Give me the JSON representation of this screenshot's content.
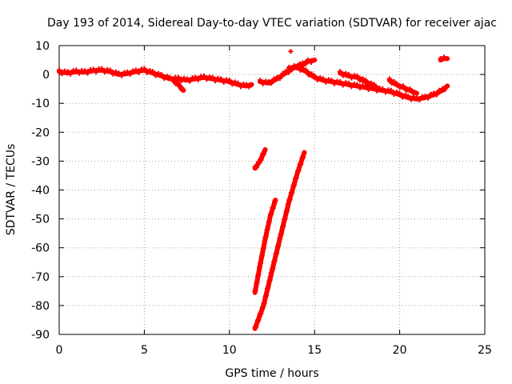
{
  "chart_data": {
    "type": "scatter",
    "title": "Day 193 of 2014, Sidereal Day-to-day VTEC variation (SDTVAR) for receiver ajac",
    "xlabel": "GPS time / hours",
    "ylabel": "SDTVAR / TECUs",
    "xlim": [
      0,
      25
    ],
    "ylim": [
      -90,
      10
    ],
    "xticks": [
      0,
      5,
      10,
      15,
      20,
      25
    ],
    "yticks": [
      10,
      0,
      -10,
      -20,
      -30,
      -40,
      -50,
      -60,
      -70,
      -80,
      -90
    ],
    "grid": true,
    "marker": "+",
    "color": "#ff0000",
    "series": [
      {
        "segments": [
          [
            [
              0.0,
              1.0
            ],
            [
              0.5,
              0.5
            ],
            [
              1.0,
              1.0
            ],
            [
              1.5,
              0.8
            ],
            [
              2.0,
              1.3
            ],
            [
              2.5,
              1.5
            ],
            [
              3.0,
              1.0
            ],
            [
              3.5,
              0.0
            ],
            [
              4.0,
              0.3
            ],
            [
              4.5,
              1.0
            ],
            [
              5.0,
              1.5
            ],
            [
              5.5,
              0.5
            ],
            [
              6.0,
              -0.5
            ],
            [
              6.5,
              -1.5
            ],
            [
              7.0,
              -1.5
            ],
            [
              7.5,
              -2.0
            ],
            [
              8.0,
              -1.5
            ],
            [
              8.5,
              -1.0
            ]
          ],
          [
            [
              6.7,
              -2.0
            ],
            [
              7.0,
              -3.5
            ],
            [
              7.3,
              -5.5
            ]
          ],
          [
            [
              8.5,
              -1.0
            ],
            [
              9.0,
              -1.5
            ],
            [
              9.5,
              -2.0
            ],
            [
              10.0,
              -2.5
            ],
            [
              10.5,
              -3.5
            ],
            [
              11.0,
              -4.0
            ],
            [
              11.3,
              -3.5
            ]
          ],
          [
            [
              11.8,
              -2.5
            ],
            [
              12.3,
              -3.0
            ],
            [
              12.8,
              -1.5
            ],
            [
              13.3,
              0.5
            ],
            [
              13.8,
              2.5
            ],
            [
              14.3,
              3.5
            ],
            [
              14.6,
              4.5
            ],
            [
              15.0,
              5.0
            ]
          ],
          [
            [
              13.5,
              2.0
            ],
            [
              14.0,
              2.5
            ],
            [
              14.5,
              1.0
            ],
            [
              15.0,
              -1.0
            ],
            [
              15.5,
              -2.0
            ],
            [
              16.0,
              -2.5
            ],
            [
              16.5,
              -3.0
            ],
            [
              17.0,
              -3.5
            ],
            [
              17.5,
              -4.0
            ],
            [
              18.0,
              -4.5
            ],
            [
              18.5,
              -5.0
            ],
            [
              19.0,
              -5.5
            ],
            [
              19.5,
              -6.0
            ],
            [
              20.0,
              -7.0
            ],
            [
              20.5,
              -8.0
            ],
            [
              21.0,
              -8.5
            ],
            [
              21.5,
              -8.0
            ],
            [
              22.0,
              -7.0
            ],
            [
              22.5,
              -5.5
            ],
            [
              22.8,
              -4.0
            ]
          ],
          [
            [
              16.5,
              0.5
            ],
            [
              17.0,
              -0.5
            ],
            [
              17.5,
              -1.0
            ],
            [
              18.0,
              -2.5
            ],
            [
              18.5,
              -4.0
            ],
            [
              18.8,
              -5.0
            ]
          ],
          [
            [
              19.4,
              -2.0
            ],
            [
              19.8,
              -3.5
            ],
            [
              20.2,
              -4.5
            ],
            [
              20.6,
              -5.5
            ],
            [
              21.0,
              -6.5
            ]
          ],
          [
            [
              22.4,
              5.0
            ],
            [
              22.6,
              5.5
            ],
            [
              22.8,
              5.5
            ]
          ],
          [
            [
              11.5,
              -32.5
            ],
            [
              11.8,
              -30.0
            ],
            [
              12.1,
              -26.0
            ]
          ],
          [
            [
              11.5,
              -75.5
            ],
            [
              11.8,
              -66.0
            ],
            [
              12.1,
              -57.0
            ],
            [
              12.4,
              -49.0
            ],
            [
              12.7,
              -43.5
            ]
          ],
          [
            [
              11.5,
              -88.0
            ],
            [
              12.0,
              -80.0
            ],
            [
              12.5,
              -68.0
            ],
            [
              13.0,
              -56.0
            ],
            [
              13.5,
              -44.0
            ],
            [
              14.0,
              -34.0
            ],
            [
              14.4,
              -27.0
            ]
          ]
        ]
      },
      {
        "points": [
          [
            13.6,
            8.0
          ]
        ]
      }
    ]
  }
}
